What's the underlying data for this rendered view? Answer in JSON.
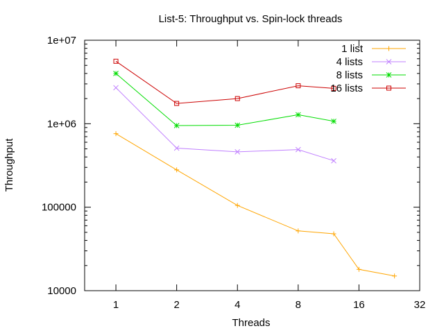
{
  "chart_data": {
    "type": "line",
    "title": "List-5: Throughput vs. Spin-lock threads",
    "xlabel": "Threads",
    "ylabel": "Throughput",
    "x_scale": "log2",
    "y_scale": "log10",
    "xlim": [
      0.7,
      32
    ],
    "ylim": [
      10000,
      10000000
    ],
    "x_ticks": [
      1,
      2,
      4,
      8,
      16,
      32
    ],
    "x_tick_labels": [
      "1",
      "2",
      "4",
      "8",
      "16",
      "32"
    ],
    "y_ticks": [
      10000,
      100000,
      1000000,
      10000000
    ],
    "y_tick_labels": [
      "10000",
      "100000",
      "1e+06",
      "1e+07"
    ],
    "grid": false,
    "legend_position": "top-right",
    "series": [
      {
        "name": "1 list",
        "color": "#ffa500",
        "marker": "plus",
        "x": [
          1,
          2,
          4,
          8,
          12,
          16,
          24
        ],
        "y": [
          760000,
          280000,
          105000,
          52000,
          48000,
          18000,
          15000
        ]
      },
      {
        "name": "4 lists",
        "color": "#c080ff",
        "marker": "cross",
        "x": [
          1,
          2,
          4,
          8,
          12
        ],
        "y": [
          2700000,
          510000,
          460000,
          490000,
          360000
        ]
      },
      {
        "name": "8 lists",
        "color": "#00dd00",
        "marker": "star",
        "x": [
          1,
          2,
          4,
          8,
          12
        ],
        "y": [
          4000000,
          950000,
          960000,
          1280000,
          1070000
        ]
      },
      {
        "name": "16 lists",
        "color": "#cc0000",
        "marker": "square",
        "x": [
          1,
          2,
          4,
          8,
          12
        ],
        "y": [
          5600000,
          1750000,
          2000000,
          2850000,
          2650000
        ]
      }
    ]
  }
}
